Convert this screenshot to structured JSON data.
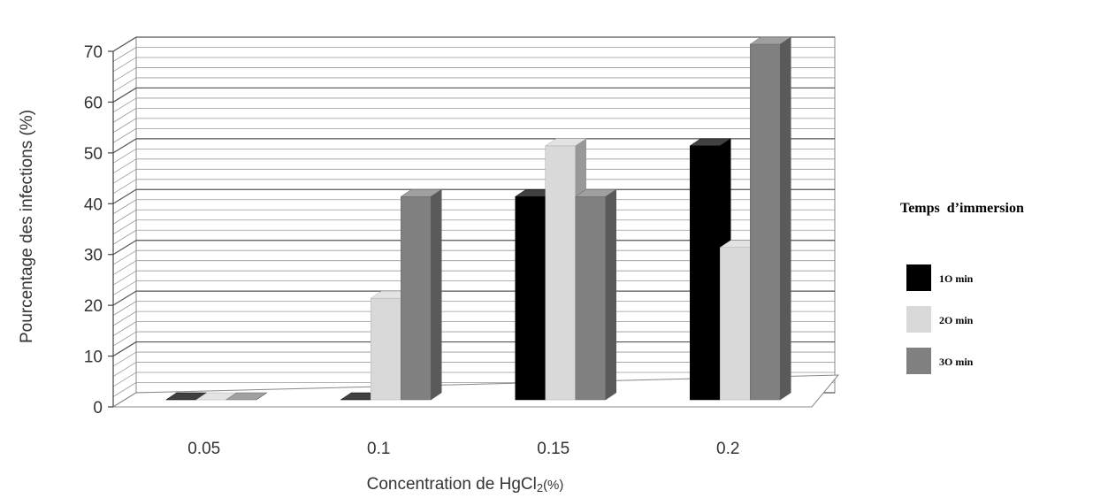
{
  "chart_data": {
    "type": "bar",
    "categories": [
      "0.05",
      "0.1",
      "0.15",
      "0.2"
    ],
    "series": [
      {
        "name": "1O min",
        "values": [
          0,
          0,
          40,
          50
        ],
        "color": "#000000"
      },
      {
        "name": "2O min",
        "values": [
          0,
          20,
          50,
          30
        ],
        "color": "#d9d9d9"
      },
      {
        "name": "3O min",
        "values": [
          0,
          40,
          40,
          70
        ],
        "color": "#808080"
      }
    ],
    "ylim": [
      0,
      70
    ],
    "yticks": [
      "0",
      "10",
      "20",
      "30",
      "40",
      "50",
      "60",
      "70"
    ],
    "xlabel_prefix": "Concentration de HgCl",
    "xlabel_sub": "2",
    "xlabel_suffix": "(%)",
    "ylabel": "Pourcentage des infections (%)",
    "legend_title": "Temps  d’immersion",
    "legend_position": "right",
    "grid": true,
    "style": "3d-clustered-column"
  }
}
